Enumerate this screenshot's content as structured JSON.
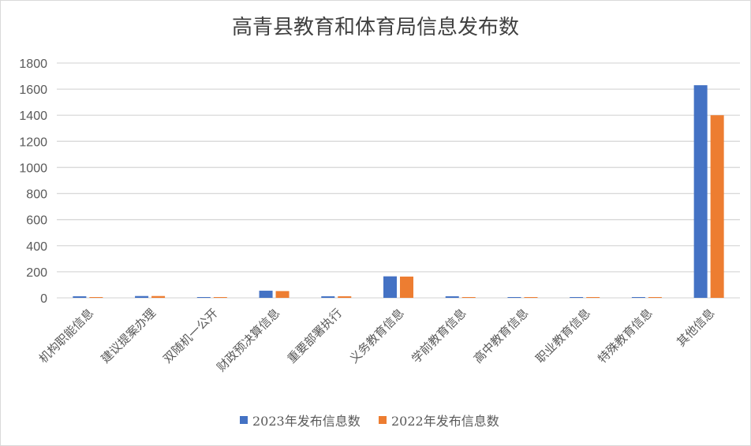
{
  "chart_data": {
    "type": "bar",
    "title": "高青县教育和体育局信息发布数",
    "categories": [
      "机构职能信息",
      "建议提案办理",
      "双随机一公开",
      "财政预决算信息",
      "重要部署执行",
      "义务教育信息",
      "学前教育信息",
      "高中教育信息",
      "职业教育信息",
      "特殊教育信息",
      "其他信息"
    ],
    "series": [
      {
        "name": "2023年发布信息数",
        "color": "#4472c4",
        "values": [
          12,
          14,
          6,
          55,
          12,
          165,
          12,
          6,
          6,
          6,
          1630
        ]
      },
      {
        "name": "2022年发布信息数",
        "color": "#ed7d31",
        "values": [
          6,
          14,
          6,
          52,
          12,
          163,
          6,
          6,
          6,
          6,
          1400
        ]
      }
    ],
    "ylim": [
      0,
      1800
    ],
    "yticks": [
      0,
      200,
      400,
      600,
      800,
      1000,
      1200,
      1400,
      1600,
      1800
    ],
    "grid": true,
    "legend": "bottom",
    "xlabel": "",
    "ylabel": ""
  }
}
